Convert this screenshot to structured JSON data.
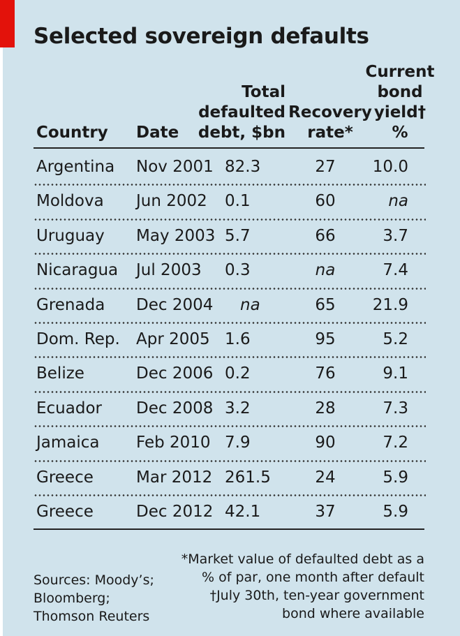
{
  "chart_data": {
    "type": "table",
    "title": "Selected sovereign defaults",
    "columns": [
      {
        "key": "country",
        "label": "Country"
      },
      {
        "key": "date",
        "label": "Date"
      },
      {
        "key": "debt",
        "label": "Total defaulted debt, $bn"
      },
      {
        "key": "recovery",
        "label": "Recovery rate*"
      },
      {
        "key": "yield",
        "label": "Current bond yield† %"
      }
    ],
    "rows": [
      {
        "country": "Argentina",
        "date": "Nov 2001",
        "debt": "82.3",
        "recovery": "27",
        "yield": "10.0"
      },
      {
        "country": "Moldova",
        "date": "Jun 2002",
        "debt": "0.1",
        "recovery": "60",
        "yield": "na"
      },
      {
        "country": "Uruguay",
        "date": "May 2003",
        "debt": "5.7",
        "recovery": "66",
        "yield": "3.7"
      },
      {
        "country": "Nicaragua",
        "date": "Jul 2003",
        "debt": "0.3",
        "recovery": "na",
        "yield": "7.4"
      },
      {
        "country": "Grenada",
        "date": "Dec 2004",
        "debt": "na",
        "recovery": "65",
        "yield": "21.9"
      },
      {
        "country": "Dom. Rep.",
        "date": "Apr 2005",
        "debt": "1.6",
        "recovery": "95",
        "yield": "5.2"
      },
      {
        "country": "Belize",
        "date": "Dec 2006",
        "debt": "0.2",
        "recovery": "76",
        "yield": "9.1"
      },
      {
        "country": "Ecuador",
        "date": "Dec 2008",
        "debt": "3.2",
        "recovery": "28",
        "yield": "7.3"
      },
      {
        "country": "Jamaica",
        "date": "Feb 2010",
        "debt": "7.9",
        "recovery": "90",
        "yield": "7.2"
      },
      {
        "country": "Greece",
        "date": "Mar 2012",
        "debt": "261.5",
        "recovery": "24",
        "yield": "5.9"
      },
      {
        "country": "Greece",
        "date": "Dec 2012",
        "debt": "42.1",
        "recovery": "37",
        "yield": "5.9"
      }
    ],
    "sources": [
      "Sources: Moody’s;",
      "Bloomberg;",
      "Thomson Reuters"
    ],
    "notes": [
      "*Market value of defaulted debt as a",
      "% of par, one month after default",
      "†July 30th, ten-year government",
      "bond where available"
    ]
  },
  "colors": {
    "background": "#d0e3ec",
    "accent": "#e3120b",
    "text": "#1a1a1a"
  }
}
